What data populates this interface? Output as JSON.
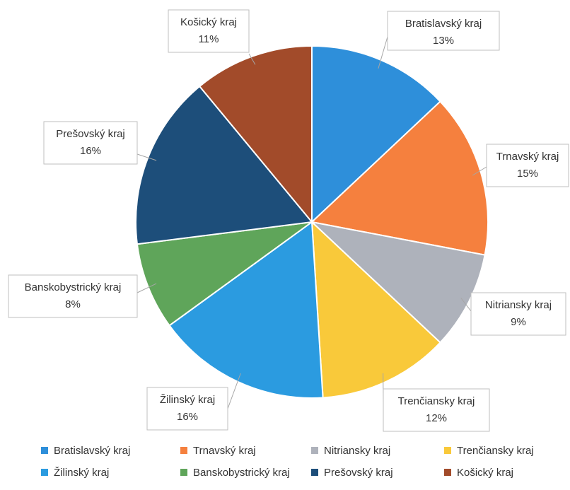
{
  "chart_data": {
    "type": "pie",
    "start_angle_deg": 0,
    "direction": "clockwise",
    "slices": [
      {
        "name": "Bratislavský kraj",
        "label": "Bratislavský kraj",
        "pct_label": "13%",
        "value": 13,
        "color": "#2E8FDA"
      },
      {
        "name": "Trnavský kraj",
        "label": "Trnavský kraj",
        "pct_label": "15%",
        "value": 15,
        "color": "#F5803E"
      },
      {
        "name": "Nitriansky kraj",
        "label": "Nitriansky kraj",
        "pct_label": "9%",
        "value": 9,
        "color": "#AEB2BB"
      },
      {
        "name": "Trenčiansky kraj",
        "label": "Trenčiansky kraj",
        "pct_label": "12%",
        "value": 12,
        "color": "#F9C93A"
      },
      {
        "name": "Žilinský kraj",
        "label": "Žilinský kraj",
        "pct_label": "16%",
        "value": 16,
        "color": "#2B9BE0"
      },
      {
        "name": "Banskobystrický kraj",
        "label": "Banskobystrický kraj",
        "pct_label": "8%",
        "value": 8,
        "color": "#5FA55A"
      },
      {
        "name": "Prešovský kraj",
        "label": "Prešovský kraj",
        "pct_label": "16%",
        "value": 16,
        "color": "#1D4E7A"
      },
      {
        "name": "Košický kraj",
        "label": "Košický kraj",
        "pct_label": "11%",
        "value": 11,
        "color": "#A24B2A"
      }
    ],
    "legend": {
      "placement": "bottom",
      "items": [
        "Bratislavský kraj",
        "Trnavský kraj",
        "Nitriansky kraj",
        "Trenčiansky kraj",
        "Žilinský kraj",
        "Banskobystrický kraj",
        "Prešovský kraj",
        "Košický kraj"
      ]
    }
  }
}
